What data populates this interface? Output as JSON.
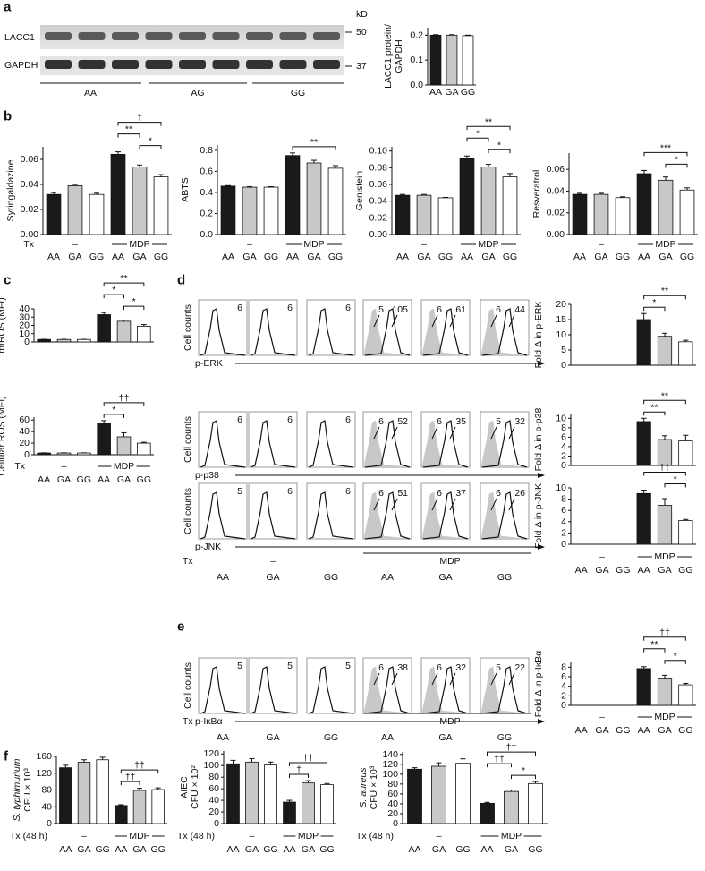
{
  "panel_labels": [
    "a",
    "b",
    "c",
    "d",
    "e",
    "f"
  ],
  "blot": {
    "rows": [
      "LACC1",
      "GAPDH"
    ],
    "unit": "kD",
    "markers": [
      50,
      37
    ],
    "groups": [
      "AA",
      "AG",
      "GG"
    ]
  },
  "flow": [
    {
      "y_label": "Cell counts",
      "marker": "p-ERK",
      "boxes": [
        [
          6
        ],
        [
          6
        ],
        [
          6
        ],
        [
          5,
          105
        ],
        [
          6,
          61
        ],
        [
          6,
          44
        ]
      ]
    },
    {
      "y_label": "Cell counts",
      "marker": "p-p38",
      "boxes": [
        [
          6
        ],
        [
          6
        ],
        [
          6
        ],
        [
          6,
          52
        ],
        [
          6,
          35
        ],
        [
          5,
          32
        ]
      ]
    },
    {
      "y_label": "Cell counts",
      "marker": "p-JNK",
      "boxes": [
        [
          5
        ],
        [
          6
        ],
        [
          6
        ],
        [
          6,
          51
        ],
        [
          6,
          37
        ],
        [
          6,
          26
        ]
      ]
    },
    {
      "y_label": "Cell counts",
      "marker": "p-IκBα",
      "boxes": [
        [
          5
        ],
        [
          5
        ],
        [
          5
        ],
        [
          6,
          38
        ],
        [
          6,
          32
        ],
        [
          5,
          22
        ]
      ]
    }
  ],
  "flow_axes": [
    {
      "tx": "Tx",
      "control": "–",
      "treatment": "MDP",
      "categories": [
        "AA",
        "GA",
        "GG",
        "AA",
        "GA",
        "GG"
      ]
    },
    {
      "tx": "Tx",
      "control": "–",
      "treatment": "MDP",
      "categories": [
        "AA",
        "GA",
        "GG",
        "AA",
        "GA",
        "GG"
      ]
    }
  ],
  "chart_data": [
    {
      "type": "bar",
      "y_label": [
        "LACC1 protein/",
        "GAPDH"
      ],
      "categories": [
        "AA",
        "GA",
        "GG"
      ],
      "values": [
        0.2,
        0.2,
        0.198
      ],
      "errors": [
        0.002,
        0.002,
        0.002
      ],
      "colors": [
        "#1a1a1a",
        "#c8c8c8",
        "#ffffff"
      ],
      "ylim": [
        0,
        0.23
      ],
      "yticks": [
        {
          "value": 0,
          "label": "0.0"
        },
        0.1,
        0.2
      ]
    },
    {
      "type": "bar",
      "y_label": [
        "Syringaldazine"
      ],
      "tx_label": "Tx",
      "control_label": "–",
      "treatment_label": "MDP",
      "categories": [
        "AA",
        "GA",
        "GG",
        "AA",
        "GA",
        "GG"
      ],
      "values": [
        0.032,
        0.039,
        0.032,
        0.064,
        0.054,
        0.046
      ],
      "errors": [
        0.0015,
        0.001,
        0.001,
        0.002,
        0.0015,
        0.0018
      ],
      "colors": [
        "#1a1a1a",
        "#c8c8c8",
        "#ffffff"
      ],
      "ylim": [
        0,
        0.07
      ],
      "yticks": [
        {
          "value": 0,
          "label": "0.00"
        },
        0.02,
        0.04,
        0.06
      ],
      "annotations": [
        "†",
        "**",
        "*"
      ]
    },
    {
      "type": "bar",
      "y_label": [
        "ABTS"
      ],
      "control_label": "–",
      "treatment_label": "MDP",
      "categories": [
        "AA",
        "GA",
        "GG",
        "AA",
        "GA",
        "GG"
      ],
      "values": [
        0.46,
        0.45,
        0.45,
        0.75,
        0.68,
        0.63
      ],
      "errors": [
        0.005,
        0.005,
        0.005,
        0.025,
        0.025,
        0.025
      ],
      "colors": [
        "#1a1a1a",
        "#c8c8c8",
        "#ffffff"
      ],
      "ylim": [
        0,
        0.85
      ],
      "yticks": [
        {
          "value": 0,
          "label": "0.0"
        },
        0.2,
        0.4,
        0.6,
        0.8
      ],
      "annotations": [
        "**"
      ]
    },
    {
      "type": "bar",
      "y_label": [
        "Genistein"
      ],
      "control_label": "–",
      "treatment_label": "MDP",
      "categories": [
        "AA",
        "GA",
        "GG",
        "AA",
        "GA",
        "GG"
      ],
      "values": [
        0.047,
        0.047,
        0.044,
        0.091,
        0.081,
        0.069
      ],
      "errors": [
        0.001,
        0.001,
        0.0005,
        0.003,
        0.003,
        0.004
      ],
      "colors": [
        "#1a1a1a",
        "#c8c8c8",
        "#ffffff"
      ],
      "ylim": [
        0,
        0.105
      ],
      "yticks": [
        {
          "value": 0,
          "label": "0.00"
        },
        0.02,
        0.04,
        0.06,
        0.08,
        {
          "value": 0.1,
          "label": "0.10"
        }
      ],
      "annotations": [
        "**",
        "*",
        "*"
      ]
    },
    {
      "type": "bar",
      "y_label": [
        "Resveratrol"
      ],
      "control_label": "–",
      "treatment_label": "MDP",
      "categories": [
        "AA",
        "GA",
        "GG",
        "AA",
        "GA",
        "GG"
      ],
      "values": [
        0.037,
        0.037,
        0.034,
        0.056,
        0.05,
        0.041
      ],
      "errors": [
        0.001,
        0.001,
        0.0008,
        0.003,
        0.003,
        0.002
      ],
      "colors": [
        "#1a1a1a",
        "#c8c8c8",
        "#ffffff"
      ],
      "ylim": [
        0,
        0.075
      ],
      "yticks": [
        {
          "value": 0,
          "label": "0.00"
        },
        0.02,
        0.04,
        0.06
      ],
      "annotations": [
        "***",
        "*"
      ]
    },
    {
      "type": "bar",
      "y_label": [
        "mtROS (MFI)"
      ],
      "categories": [
        null,
        null,
        null,
        null,
        null,
        null
      ],
      "values": [
        3,
        3,
        3,
        33,
        25,
        19
      ],
      "errors": [
        0.2,
        0.2,
        0.2,
        2.5,
        1.5,
        2
      ],
      "colors": [
        "#1a1a1a",
        "#c8c8c8",
        "#ffffff"
      ],
      "ylim": [
        0,
        40
      ],
      "yticks": [
        0,
        10,
        20,
        30,
        40
      ],
      "annotations": [
        "**",
        "*",
        "*"
      ]
    },
    {
      "type": "bar",
      "y_label": [
        "Cellular ROS (MFI)"
      ],
      "tx_label": "Tx",
      "control_label": "–",
      "treatment_label": "MDP",
      "categories": [
        "AA",
        "GA",
        "GG",
        "AA",
        "GA",
        "GG"
      ],
      "values": [
        3,
        3,
        3,
        55,
        31,
        20
      ],
      "errors": [
        0.3,
        0.3,
        0.3,
        4,
        7,
        1.5
      ],
      "colors": [
        "#1a1a1a",
        "#c8c8c8",
        "#ffffff"
      ],
      "ylim": [
        0,
        65
      ],
      "yticks": [
        0,
        20,
        40,
        60
      ],
      "annotations": [
        "††",
        "*"
      ]
    },
    {
      "type": "bar",
      "y_label": [
        "Fold Δ in p-ERK"
      ],
      "categories": [
        null,
        null,
        null,
        null,
        null,
        null
      ],
      "values": [
        null,
        null,
        null,
        15,
        9.5,
        7.7
      ],
      "errors": [
        null,
        null,
        null,
        2,
        1,
        0.5
      ],
      "colors": [
        "#1a1a1a",
        "#c8c8c8",
        "#ffffff"
      ],
      "ylim": [
        0,
        20
      ],
      "yticks": [
        0,
        5,
        10,
        15,
        20
      ],
      "annotations": [
        "**",
        "*"
      ]
    },
    {
      "type": "bar",
      "y_label": [
        "Fold Δ in p-p38"
      ],
      "categories": [
        null,
        null,
        null,
        null,
        null,
        null
      ],
      "values": [
        null,
        null,
        null,
        9.3,
        5.5,
        5.2
      ],
      "errors": [
        null,
        null,
        null,
        0.7,
        0.8,
        1.2
      ],
      "colors": [
        "#1a1a1a",
        "#c8c8c8",
        "#ffffff"
      ],
      "ylim": [
        0,
        11
      ],
      "yticks": [
        0,
        2,
        4,
        6,
        8,
        10
      ],
      "annotations": [
        "**",
        "**"
      ]
    },
    {
      "type": "bar",
      "y_label": [
        "Fold Δ in p-JNK"
      ],
      "control_label": "–",
      "treatment_label": "MDP",
      "categories": [
        "AA",
        "GA",
        "GG",
        "AA",
        "GA",
        "GG"
      ],
      "values": [
        null,
        null,
        null,
        9,
        6.9,
        4.2
      ],
      "errors": [
        null,
        null,
        null,
        0.6,
        1.2,
        0.2
      ],
      "colors": [
        "#1a1a1a",
        "#c8c8c8",
        "#ffffff"
      ],
      "ylim": [
        0,
        10
      ],
      "yticks": [
        0,
        2,
        4,
        6,
        8,
        10
      ],
      "annotations": [
        "††",
        "*"
      ]
    },
    {
      "type": "bar",
      "y_label": [
        "Fold Δ in p-IκBα"
      ],
      "control_label": "–",
      "treatment_label": "MDP",
      "categories": [
        "AA",
        "GA",
        "GG",
        "AA",
        "GA",
        "GG"
      ],
      "values": [
        null,
        null,
        null,
        7.7,
        5.7,
        4.3
      ],
      "errors": [
        null,
        null,
        null,
        0.4,
        0.6,
        0.3
      ],
      "colors": [
        "#1a1a1a",
        "#c8c8c8",
        "#ffffff"
      ],
      "ylim": [
        0,
        9
      ],
      "yticks": [
        0,
        2,
        4,
        6,
        8
      ],
      "annotations": [
        "††",
        "**",
        "*"
      ]
    },
    {
      "type": "bar",
      "y_label": [
        "S. typhimurium",
        "CFU × 10³"
      ],
      "tx_label": "Tx (48 h)",
      "control_label": "–",
      "treatment_label": "MDP",
      "categories": [
        "AA",
        "GA",
        "GG",
        "AA",
        "GA",
        "GG"
      ],
      "values": [
        133,
        146,
        152,
        43,
        79,
        81
      ],
      "errors": [
        6,
        6,
        6,
        2,
        5,
        4
      ],
      "colors": [
        "#1a1a1a",
        "#c8c8c8",
        "#ffffff"
      ],
      "ylim": [
        0,
        160
      ],
      "yticks": [
        0,
        40,
        80,
        120,
        160
      ],
      "annotations": [
        "††",
        "††"
      ]
    },
    {
      "type": "bar",
      "y_label": [
        "AIEC",
        "CFU × 10²"
      ],
      "tx_label": "Tx (48 h)",
      "control_label": "–",
      "treatment_label": "MDP",
      "categories": [
        "AA",
        "GA",
        "GG",
        "AA",
        "GA",
        "GG"
      ],
      "values": [
        103,
        106,
        101,
        37,
        70,
        67
      ],
      "errors": [
        6,
        6,
        5,
        3,
        4,
        2
      ],
      "colors": [
        "#1a1a1a",
        "#c8c8c8",
        "#ffffff"
      ],
      "ylim": [
        0,
        125
      ],
      "yticks": [
        0,
        20,
        40,
        60,
        80,
        100,
        120
      ],
      "annotations": [
        "††",
        "†"
      ]
    },
    {
      "type": "bar",
      "y_label": [
        "S. aureus",
        "CFU × 10³"
      ],
      "tx_label": "Tx (48 h)",
      "control_label": "–",
      "treatment_label": "MDP",
      "categories": [
        "AA",
        "GA",
        "GG",
        "AA",
        "GA",
        "GG"
      ],
      "values": [
        110,
        116,
        122,
        41,
        65,
        81
      ],
      "errors": [
        3,
        7,
        9,
        2,
        3,
        4
      ],
      "colors": [
        "#1a1a1a",
        "#c8c8c8",
        "#ffffff"
      ],
      "ylim": [
        0,
        145
      ],
      "yticks": [
        0,
        20,
        40,
        60,
        80,
        100,
        120,
        140
      ],
      "annotations": [
        "††",
        "††",
        "*"
      ]
    }
  ]
}
